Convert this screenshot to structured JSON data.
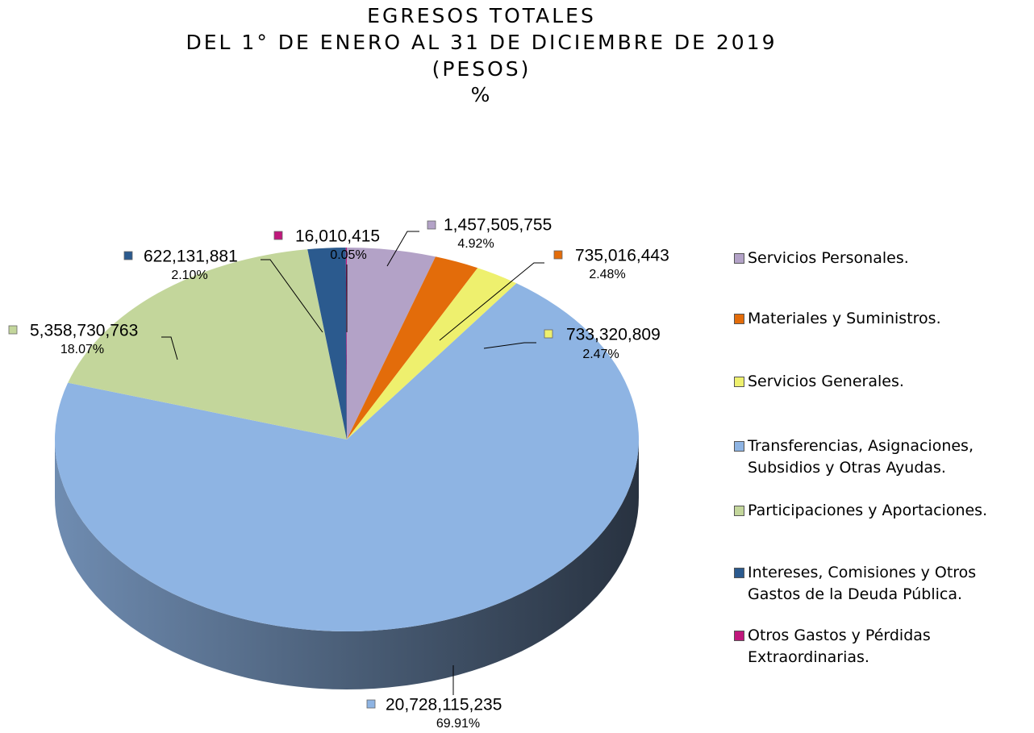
{
  "chart_data": {
    "type": "pie3d",
    "title": [
      "EGRESOS TOTALES",
      "DEL 1° DE ENERO AL 31 DE DICIEMBRE DE 2019",
      "(PESOS)",
      "%"
    ],
    "categories": [
      "Servicios Personales.",
      "Materiales y Suministros.",
      "Servicios Generales.",
      "Transferencias, Asignaciones, Subsidios y Otras Ayudas.",
      "Participaciones y Aportaciones.",
      "Intereses, Comisiones y Otros Gastos de la Deuda Pública.",
      "Otros Gastos y Pérdidas Extraordinarias."
    ],
    "values": [
      1457505755,
      735016443,
      733320809,
      20728115235,
      5358730763,
      622131881,
      16010415
    ],
    "value_labels": [
      "1,457,505,755",
      "735,016,443",
      "733,320,809",
      "20,728,115,235",
      "5,358,730,763",
      "622,131,881",
      "16,010,415"
    ],
    "percentages": [
      4.92,
      2.48,
      2.47,
      69.91,
      18.07,
      2.1,
      0.05
    ],
    "percentage_labels": [
      "4.92%",
      "2.48%",
      "2.47%",
      "69.91%",
      "18.07%",
      "2.10%",
      "0.05%"
    ],
    "colors": [
      "#b3a2c7",
      "#e36c0a",
      "#eef06e",
      "#8eb4e3",
      "#c3d69b",
      "#2b5a8e",
      "#c0187c"
    ],
    "legend": "right"
  }
}
